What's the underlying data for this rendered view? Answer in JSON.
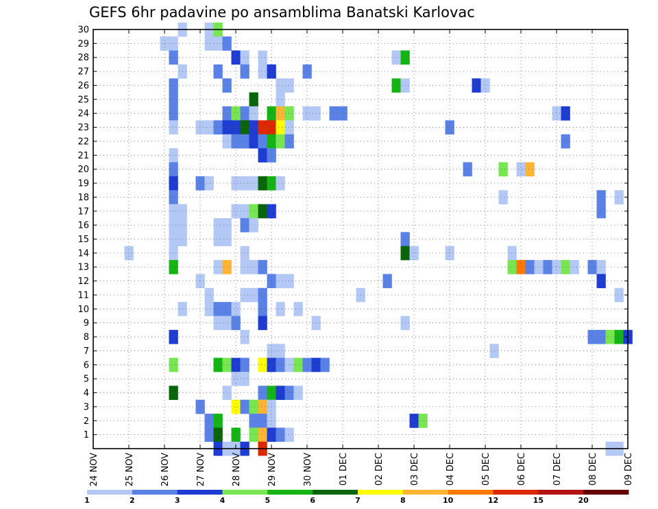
{
  "chart_data": {
    "type": "heatmap",
    "title": "GEFS 6hr padavine po ansamblima Banatski Karlovac",
    "xlabel": "",
    "ylabel": "",
    "x_ticks": [
      "24 NOV",
      "25 NOV",
      "26 NOV",
      "27 NOV",
      "28 NOV",
      "29 NOV",
      "30 NOV",
      "01 DEC",
      "02 DEC",
      "03 DEC",
      "04 DEC",
      "05 DEC",
      "06 DEC",
      "07 DEC",
      "08 DEC",
      "09 DEC"
    ],
    "x_units": "6-hour steps from 24 NOV",
    "xlim": [
      0,
      60
    ],
    "y_ticks": [
      1,
      2,
      3,
      4,
      5,
      6,
      7,
      8,
      9,
      10,
      11,
      12,
      13,
      14,
      15,
      16,
      17,
      18,
      19,
      20,
      21,
      22,
      23,
      24,
      25,
      26,
      27,
      28,
      29,
      30
    ],
    "ylim": [
      0,
      30
    ],
    "grid": true,
    "legend": {
      "position": "bottom",
      "labels": [
        "1",
        "2",
        "3",
        "4",
        "5",
        "6",
        "7",
        "8",
        "10",
        "12",
        "15",
        "20"
      ],
      "colors": [
        "#b4c8f5",
        "#5a82e6",
        "#1e3cd2",
        "#78e650",
        "#14b414",
        "#0a640a",
        "#ffff00",
        "#ffb432",
        "#ff7800",
        "#dc2800",
        "#b41414",
        "#640000"
      ]
    },
    "level_colors": [
      "#b4c8f5",
      "#5a82e6",
      "#1e3cd2",
      "#78e650",
      "#14b414",
      "#0a640a",
      "#ffff00",
      "#ffb432",
      "#ff7800",
      "#dc2800",
      "#b41414",
      "#640000"
    ],
    "cell_format": "[time_step, member, level] level 0=1-2mm ... 11=20+",
    "cells": [
      [
        10,
        30,
        0
      ],
      [
        13,
        30,
        0
      ],
      [
        14,
        30,
        3
      ],
      [
        8,
        29,
        0
      ],
      [
        9,
        29,
        0
      ],
      [
        13,
        29,
        0
      ],
      [
        14,
        29,
        0
      ],
      [
        15,
        29,
        1
      ],
      [
        9,
        28,
        1
      ],
      [
        16,
        28,
        2
      ],
      [
        17,
        28,
        0
      ],
      [
        19,
        28,
        0
      ],
      [
        34,
        28,
        0
      ],
      [
        35,
        28,
        4
      ],
      [
        10,
        27,
        0
      ],
      [
        14,
        27,
        1
      ],
      [
        17,
        27,
        1
      ],
      [
        19,
        27,
        0
      ],
      [
        20,
        27,
        2
      ],
      [
        24,
        27,
        1
      ],
      [
        9,
        26,
        1
      ],
      [
        15,
        26,
        1
      ],
      [
        21,
        26,
        0
      ],
      [
        22,
        26,
        0
      ],
      [
        34,
        26,
        4
      ],
      [
        35,
        26,
        0
      ],
      [
        43,
        26,
        2
      ],
      [
        44,
        26,
        0
      ],
      [
        9,
        25,
        1
      ],
      [
        18,
        25,
        5
      ],
      [
        21,
        25,
        0
      ],
      [
        9,
        24,
        1
      ],
      [
        15,
        24,
        1
      ],
      [
        16,
        24,
        3
      ],
      [
        17,
        24,
        1
      ],
      [
        18,
        24,
        0
      ],
      [
        20,
        24,
        4
      ],
      [
        21,
        24,
        7
      ],
      [
        22,
        24,
        3
      ],
      [
        24,
        24,
        0
      ],
      [
        25,
        24,
        0
      ],
      [
        27,
        24,
        1
      ],
      [
        28,
        24,
        1
      ],
      [
        52,
        24,
        0
      ],
      [
        53,
        24,
        2
      ],
      [
        9,
        23,
        0
      ],
      [
        12,
        23,
        0
      ],
      [
        13,
        23,
        0
      ],
      [
        14,
        23,
        1
      ],
      [
        15,
        23,
        2
      ],
      [
        16,
        23,
        2
      ],
      [
        17,
        23,
        5
      ],
      [
        18,
        23,
        2
      ],
      [
        19,
        23,
        9
      ],
      [
        20,
        23,
        9
      ],
      [
        21,
        23,
        6
      ],
      [
        22,
        23,
        0
      ],
      [
        40,
        23,
        1
      ],
      [
        15,
        22,
        0
      ],
      [
        16,
        22,
        1
      ],
      [
        17,
        22,
        1
      ],
      [
        18,
        22,
        2
      ],
      [
        19,
        22,
        1
      ],
      [
        20,
        22,
        4
      ],
      [
        21,
        22,
        3
      ],
      [
        22,
        22,
        1
      ],
      [
        53,
        22,
        1
      ],
      [
        9,
        21,
        0
      ],
      [
        19,
        21,
        2
      ],
      [
        20,
        21,
        1
      ],
      [
        9,
        20,
        1
      ],
      [
        42,
        20,
        1
      ],
      [
        46,
        20,
        3
      ],
      [
        48,
        20,
        0
      ],
      [
        49,
        20,
        7
      ],
      [
        9,
        19,
        2
      ],
      [
        12,
        19,
        1
      ],
      [
        13,
        19,
        0
      ],
      [
        16,
        19,
        0
      ],
      [
        17,
        19,
        0
      ],
      [
        18,
        19,
        0
      ],
      [
        19,
        19,
        5
      ],
      [
        20,
        19,
        4
      ],
      [
        21,
        19,
        0
      ],
      [
        9,
        18,
        1
      ],
      [
        46,
        18,
        0
      ],
      [
        57,
        18,
        1
      ],
      [
        59,
        18,
        0
      ],
      [
        9,
        17,
        0
      ],
      [
        10,
        17,
        0
      ],
      [
        16,
        17,
        0
      ],
      [
        17,
        17,
        0
      ],
      [
        18,
        17,
        3
      ],
      [
        19,
        17,
        5
      ],
      [
        20,
        17,
        2
      ],
      [
        57,
        17,
        1
      ],
      [
        9,
        16,
        0
      ],
      [
        10,
        16,
        0
      ],
      [
        14,
        16,
        0
      ],
      [
        15,
        16,
        0
      ],
      [
        17,
        16,
        1
      ],
      [
        18,
        16,
        0
      ],
      [
        9,
        15,
        0
      ],
      [
        10,
        15,
        0
      ],
      [
        14,
        15,
        0
      ],
      [
        15,
        15,
        0
      ],
      [
        35,
        15,
        1
      ],
      [
        4,
        14,
        0
      ],
      [
        9,
        14,
        0
      ],
      [
        17,
        14,
        0
      ],
      [
        35,
        14,
        5
      ],
      [
        36,
        14,
        0
      ],
      [
        40,
        14,
        0
      ],
      [
        47,
        14,
        0
      ],
      [
        9,
        13,
        4
      ],
      [
        14,
        13,
        0
      ],
      [
        15,
        13,
        7
      ],
      [
        17,
        13,
        0
      ],
      [
        18,
        13,
        0
      ],
      [
        19,
        13,
        1
      ],
      [
        47,
        13,
        3
      ],
      [
        48,
        13,
        8
      ],
      [
        49,
        13,
        1
      ],
      [
        50,
        13,
        0
      ],
      [
        51,
        13,
        1
      ],
      [
        52,
        13,
        0
      ],
      [
        53,
        13,
        3
      ],
      [
        54,
        13,
        0
      ],
      [
        56,
        13,
        1
      ],
      [
        57,
        13,
        0
      ],
      [
        12,
        12,
        0
      ],
      [
        20,
        12,
        1
      ],
      [
        21,
        12,
        0
      ],
      [
        22,
        12,
        0
      ],
      [
        33,
        12,
        1
      ],
      [
        57,
        12,
        2
      ],
      [
        13,
        11,
        0
      ],
      [
        17,
        11,
        0
      ],
      [
        18,
        11,
        0
      ],
      [
        19,
        11,
        1
      ],
      [
        30,
        11,
        0
      ],
      [
        59,
        11,
        0
      ],
      [
        10,
        10,
        0
      ],
      [
        13,
        10,
        0
      ],
      [
        14,
        10,
        1
      ],
      [
        15,
        10,
        1
      ],
      [
        16,
        10,
        0
      ],
      [
        19,
        10,
        1
      ],
      [
        21,
        10,
        0
      ],
      [
        23,
        10,
        0
      ],
      [
        14,
        9,
        0
      ],
      [
        15,
        9,
        0
      ],
      [
        16,
        9,
        1
      ],
      [
        19,
        9,
        2
      ],
      [
        25,
        9,
        0
      ],
      [
        35,
        9,
        0
      ],
      [
        9,
        8,
        2
      ],
      [
        17,
        8,
        0
      ],
      [
        56,
        8,
        1
      ],
      [
        57,
        8,
        1
      ],
      [
        58,
        8,
        3
      ],
      [
        59,
        8,
        4
      ],
      [
        60,
        8,
        2
      ],
      [
        20,
        7,
        0
      ],
      [
        21,
        7,
        0
      ],
      [
        45,
        7,
        0
      ],
      [
        9,
        6,
        3
      ],
      [
        14,
        6,
        4
      ],
      [
        15,
        6,
        3
      ],
      [
        16,
        6,
        2
      ],
      [
        17,
        6,
        1
      ],
      [
        19,
        6,
        6
      ],
      [
        20,
        6,
        2
      ],
      [
        21,
        6,
        1
      ],
      [
        22,
        6,
        0
      ],
      [
        23,
        6,
        3
      ],
      [
        24,
        6,
        1
      ],
      [
        25,
        6,
        2
      ],
      [
        26,
        6,
        1
      ],
      [
        16,
        5,
        0
      ],
      [
        17,
        5,
        0
      ],
      [
        9,
        4,
        5
      ],
      [
        15,
        4,
        0
      ],
      [
        19,
        4,
        1
      ],
      [
        20,
        4,
        4
      ],
      [
        21,
        4,
        2
      ],
      [
        22,
        4,
        1
      ],
      [
        23,
        4,
        0
      ],
      [
        12,
        3,
        1
      ],
      [
        16,
        3,
        6
      ],
      [
        17,
        3,
        1
      ],
      [
        18,
        3,
        3
      ],
      [
        19,
        3,
        7
      ],
      [
        20,
        3,
        0
      ],
      [
        13,
        2,
        1
      ],
      [
        14,
        2,
        4
      ],
      [
        18,
        2,
        1
      ],
      [
        19,
        2,
        1
      ],
      [
        20,
        2,
        0
      ],
      [
        36,
        2,
        2
      ],
      [
        37,
        2,
        3
      ],
      [
        13,
        1,
        1
      ],
      [
        14,
        1,
        5
      ],
      [
        16,
        1,
        4
      ],
      [
        18,
        1,
        3
      ],
      [
        19,
        1,
        7
      ],
      [
        20,
        1,
        2
      ],
      [
        21,
        1,
        1
      ],
      [
        22,
        1,
        0
      ],
      [
        14,
        0,
        2
      ],
      [
        15,
        0,
        0
      ],
      [
        16,
        0,
        0
      ],
      [
        17,
        0,
        2
      ],
      [
        19,
        0,
        9
      ],
      [
        58,
        0,
        0
      ],
      [
        59,
        0,
        0
      ]
    ]
  }
}
